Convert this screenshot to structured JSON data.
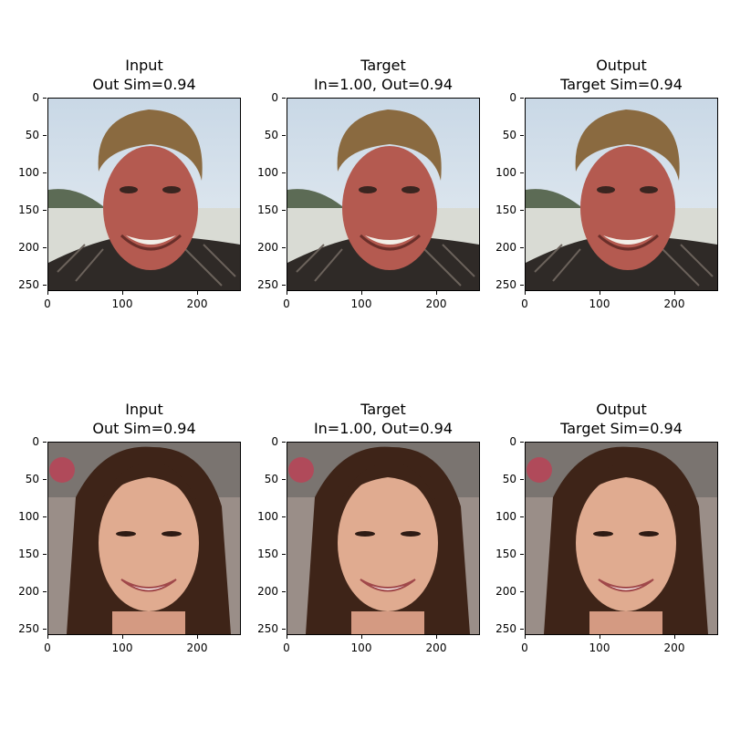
{
  "panels": [
    {
      "title_line1": "Input",
      "title_line2": "Out Sim=0.94",
      "subject": "man"
    },
    {
      "title_line1": "Target",
      "title_line2": "In=1.00, Out=0.94",
      "subject": "man"
    },
    {
      "title_line1": "Output",
      "title_line2": "Target Sim=0.94",
      "subject": "man"
    },
    {
      "title_line1": "Input",
      "title_line2": "Out Sim=0.94",
      "subject": "woman"
    },
    {
      "title_line1": "Target",
      "title_line2": "In=1.00, Out=0.94",
      "subject": "woman"
    },
    {
      "title_line1": "Output",
      "title_line2": "Target Sim=0.94",
      "subject": "woman"
    }
  ],
  "axis": {
    "y_ticks": [
      "0",
      "50",
      "100",
      "150",
      "200",
      "250"
    ],
    "x_ticks": [
      "0",
      "100",
      "200"
    ]
  },
  "colors": {
    "sky": "#c9d8e6",
    "sea": "#d9dbd4",
    "hills": "#5c6b55",
    "skin_man": "#b45a50",
    "hair_man": "#8a6a40",
    "shirt_man": "#2f2a27",
    "bg_woman": "#9a8e88",
    "hair_woman": "#3e2418",
    "skin_woman": "#e0ab90"
  }
}
